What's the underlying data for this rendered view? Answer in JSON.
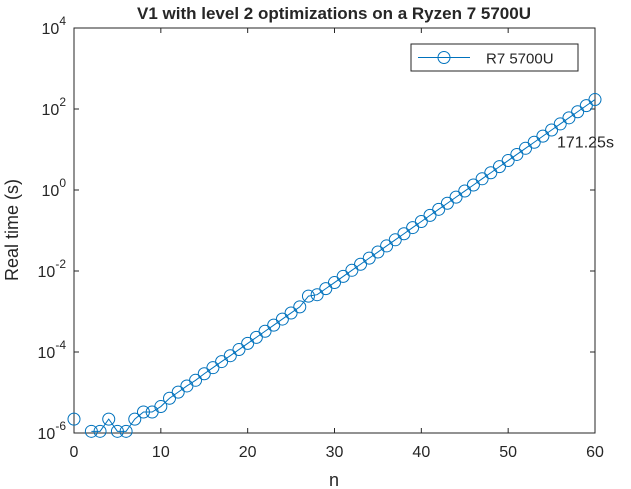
{
  "chart_data": {
    "type": "line",
    "title": "V1 with level 2 optimizations on a Ryzen 7 5700U",
    "x_label": "n",
    "y_label": "Real time (s)",
    "x": [
      0,
      1,
      2,
      3,
      4,
      5,
      6,
      7,
      8,
      9,
      10,
      11,
      12,
      13,
      14,
      15,
      16,
      17,
      18,
      19,
      20,
      21,
      22,
      23,
      24,
      25,
      26,
      27,
      28,
      29,
      30,
      31,
      32,
      33,
      34,
      35,
      36,
      37,
      38,
      39,
      40,
      41,
      42,
      43,
      44,
      45,
      46,
      47,
      48,
      49,
      50,
      51,
      52,
      53,
      54,
      55,
      56,
      57,
      58,
      59,
      60
    ],
    "series": [
      {
        "name": "R7 5700U",
        "color": "#0072bd",
        "marker": "circle",
        "values": [
          2.2e-06,
          null,
          1.1e-06,
          1.1e-06,
          2.2e-06,
          1.1e-06,
          1.1e-06,
          2.2e-06,
          3.3e-06,
          3.3e-06,
          4.5e-06,
          7.2e-06,
          1.02e-05,
          1.45e-05,
          2e-05,
          2.9e-05,
          4.1e-05,
          5.8e-05,
          8.1e-05,
          0.000115,
          0.000163,
          0.00023,
          0.000325,
          0.00046,
          0.00065,
          0.00092,
          0.0013,
          0.0024,
          0.0026,
          0.00367,
          0.00519,
          0.00735,
          0.0104,
          0.0147,
          0.0208,
          0.0294,
          0.0416,
          0.0589,
          0.0832,
          0.118,
          0.167,
          0.236,
          0.333,
          0.471,
          0.667,
          0.943,
          1.33,
          1.89,
          2.67,
          3.78,
          5.34,
          7.55,
          10.7,
          15.1,
          21.4,
          30.3,
          42.8,
          60.5,
          85.5,
          121,
          171.25
        ],
        "value_labels": [
          null,
          null,
          null,
          null,
          null,
          null,
          null,
          null,
          null,
          null,
          null,
          null,
          null,
          null,
          null,
          null,
          null,
          null,
          null,
          null,
          null,
          null,
          null,
          null,
          null,
          null,
          null,
          null,
          null,
          null,
          null,
          null,
          null,
          null,
          null,
          null,
          null,
          null,
          null,
          null,
          null,
          null,
          null,
          null,
          null,
          null,
          null,
          null,
          null,
          null,
          null,
          null,
          null,
          null,
          null,
          null,
          null,
          null,
          null,
          null,
          "171.25s"
        ]
      }
    ],
    "xlim": [
      0,
      60
    ],
    "xticks": [
      0,
      10,
      20,
      30,
      40,
      50,
      60
    ],
    "ylim": [
      1e-06,
      10000
    ],
    "yscale": "log",
    "yticks": [
      {
        "value": 1e-06,
        "label": "10",
        "power": "-6"
      },
      {
        "value": 0.0001,
        "label": "10",
        "power": "-4"
      },
      {
        "value": 0.01,
        "label": "10",
        "power": "-2"
      },
      {
        "value": 1,
        "label": "10",
        "power": "0"
      },
      {
        "value": 100,
        "label": "10",
        "power": "2"
      },
      {
        "value": 10000,
        "label": "10",
        "power": "4"
      }
    ],
    "grid": false,
    "legend": "northeast"
  }
}
